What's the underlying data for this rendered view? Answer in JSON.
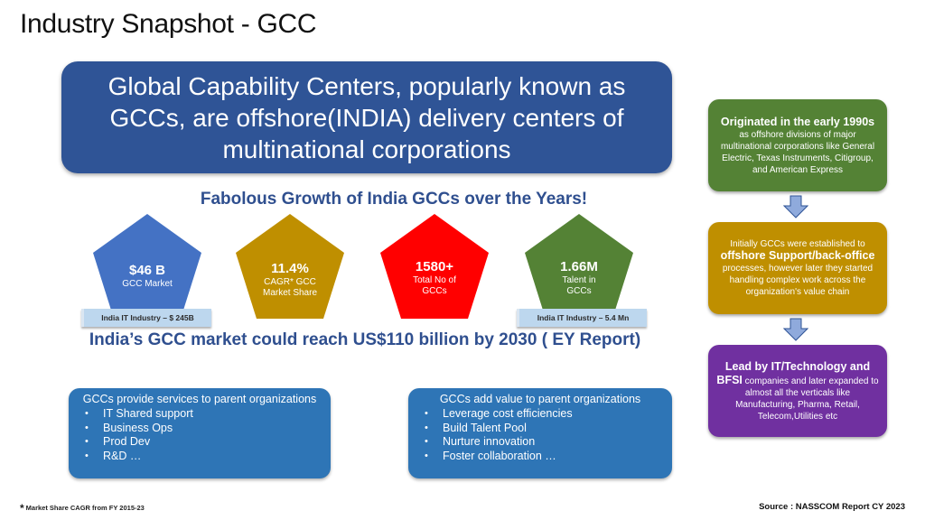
{
  "title": "Industry Snapshot - GCC",
  "hero_text": "Global Capability Centers, popularly known as GCCs, are offshore(INDIA) delivery centers of multinational corporations",
  "growth_heading": "Fabolous Growth of India GCCs over the Years!",
  "stats": [
    {
      "value": "$46 B",
      "label": "GCC Market",
      "color": "#4472c4"
    },
    {
      "value": "11.4%",
      "label": "CAGR* GCC Market Share",
      "color": "#bf8f00"
    },
    {
      "value": "1580+",
      "label": "Total No of GCCs",
      "color": "#ff0000"
    },
    {
      "value": "1.66M",
      "label": "Talent in GCCs",
      "color": "#548235"
    }
  ],
  "tags": {
    "market": "India IT Industry – $ 245B",
    "talent": "India IT Industry – 5.4 Mn"
  },
  "market_line": "India’s GCC market could reach US$110 billion by 2030 ( EY Report)",
  "services_panel": {
    "heading": "GCCs provide services to parent organizations",
    "items": [
      "IT Shared support",
      "Business Ops",
      "Prod Dev",
      "R&D …"
    ]
  },
  "value_panel": {
    "heading": "GCCs add value to parent organizations",
    "items": [
      "Leverage cost efficiencies",
      "Build Talent Pool",
      "Nurture innovation",
      "Foster collaboration …"
    ]
  },
  "side_boxes": {
    "origin": {
      "bold": "Originated in the early 1990s",
      "text": " as offshore divisions of major multinational corporations like General Electric, Texas Instruments, Citigroup, and American Express",
      "color": "#548235"
    },
    "initial": {
      "pre": "Initially GCCs were established to ",
      "bold": "offshore Support/back-office",
      "text": " processes, however later they started handling complex work across the organization's value chain",
      "color": "#bf8f00"
    },
    "lead": {
      "bold": "Lead by IT/Technology and BFSI",
      "text": " companies and later expanded to almost all the verticals like Manufacturing, Pharma, Retail, Telecom,Utilities etc",
      "color": "#7030a0"
    }
  },
  "footnote": {
    "star": "*",
    "text": "Market Share CAGR from FY 2015-23"
  },
  "source": "Source : NASSCOM Report CY 2023"
}
